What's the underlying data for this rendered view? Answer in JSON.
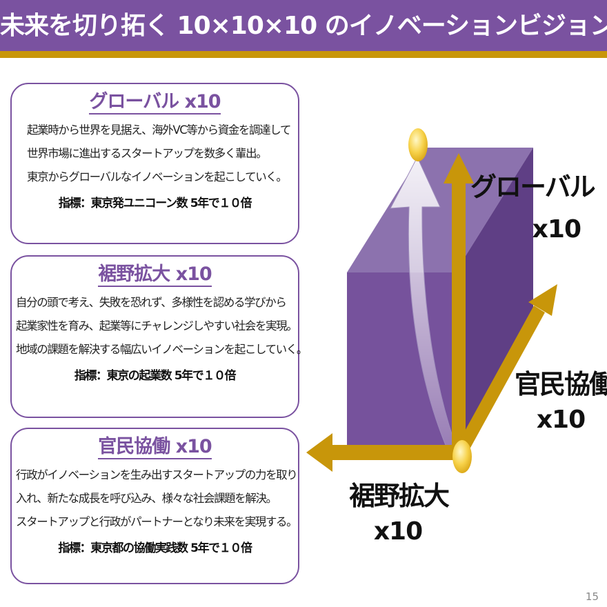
{
  "title": "未来を切り拓く 10×10×10 のイノベーションビジョン",
  "colors": {
    "purple": "#7a52a0",
    "gold": "#c8960a",
    "cube_front": "#76529c",
    "cube_top": "#8c72ae",
    "cube_side": "#5f3f85"
  },
  "cards": [
    {
      "title": "グローバル x10",
      "lines": [
        "起業時から世界を見据え、海外VC等から資金を調達して",
        "世界市場に進出するスタートアップを数多く輩出。",
        "東京からグローバルなイノベーションを起こしていく。"
      ],
      "metric": "指標：東京発ユニコーン数 5年で１０倍"
    },
    {
      "title": "裾野拡大 x10",
      "lines": [
        "自分の頭で考え、失敗を恐れず、多様性を認める学びから",
        "起業家性を育み、起業等にチャレンジしやすい社会を実現。",
        "地域の課題を解決する幅広いイノベーションを起こしていく。"
      ],
      "metric": "指標：東京の起業数 5年で１０倍"
    },
    {
      "title": "官民協働 x10",
      "lines": [
        "行政がイノベーションを生み出すスタートアップの力を取り",
        "入れ、新たな成長を呼び込み、様々な社会課題を解決。",
        "スタートアップと行政がパートナーとなり未来を実現する。"
      ],
      "metric": "指標：東京都の協働実践数 5年で１０倍"
    }
  ],
  "axes": {
    "global": {
      "name": "グローバル",
      "multiplier": "x10"
    },
    "partnership": {
      "name": "官民協働",
      "multiplier": "x10"
    },
    "expansion": {
      "name": "裾野拡大",
      "multiplier": "x10"
    }
  },
  "page_number": "15"
}
